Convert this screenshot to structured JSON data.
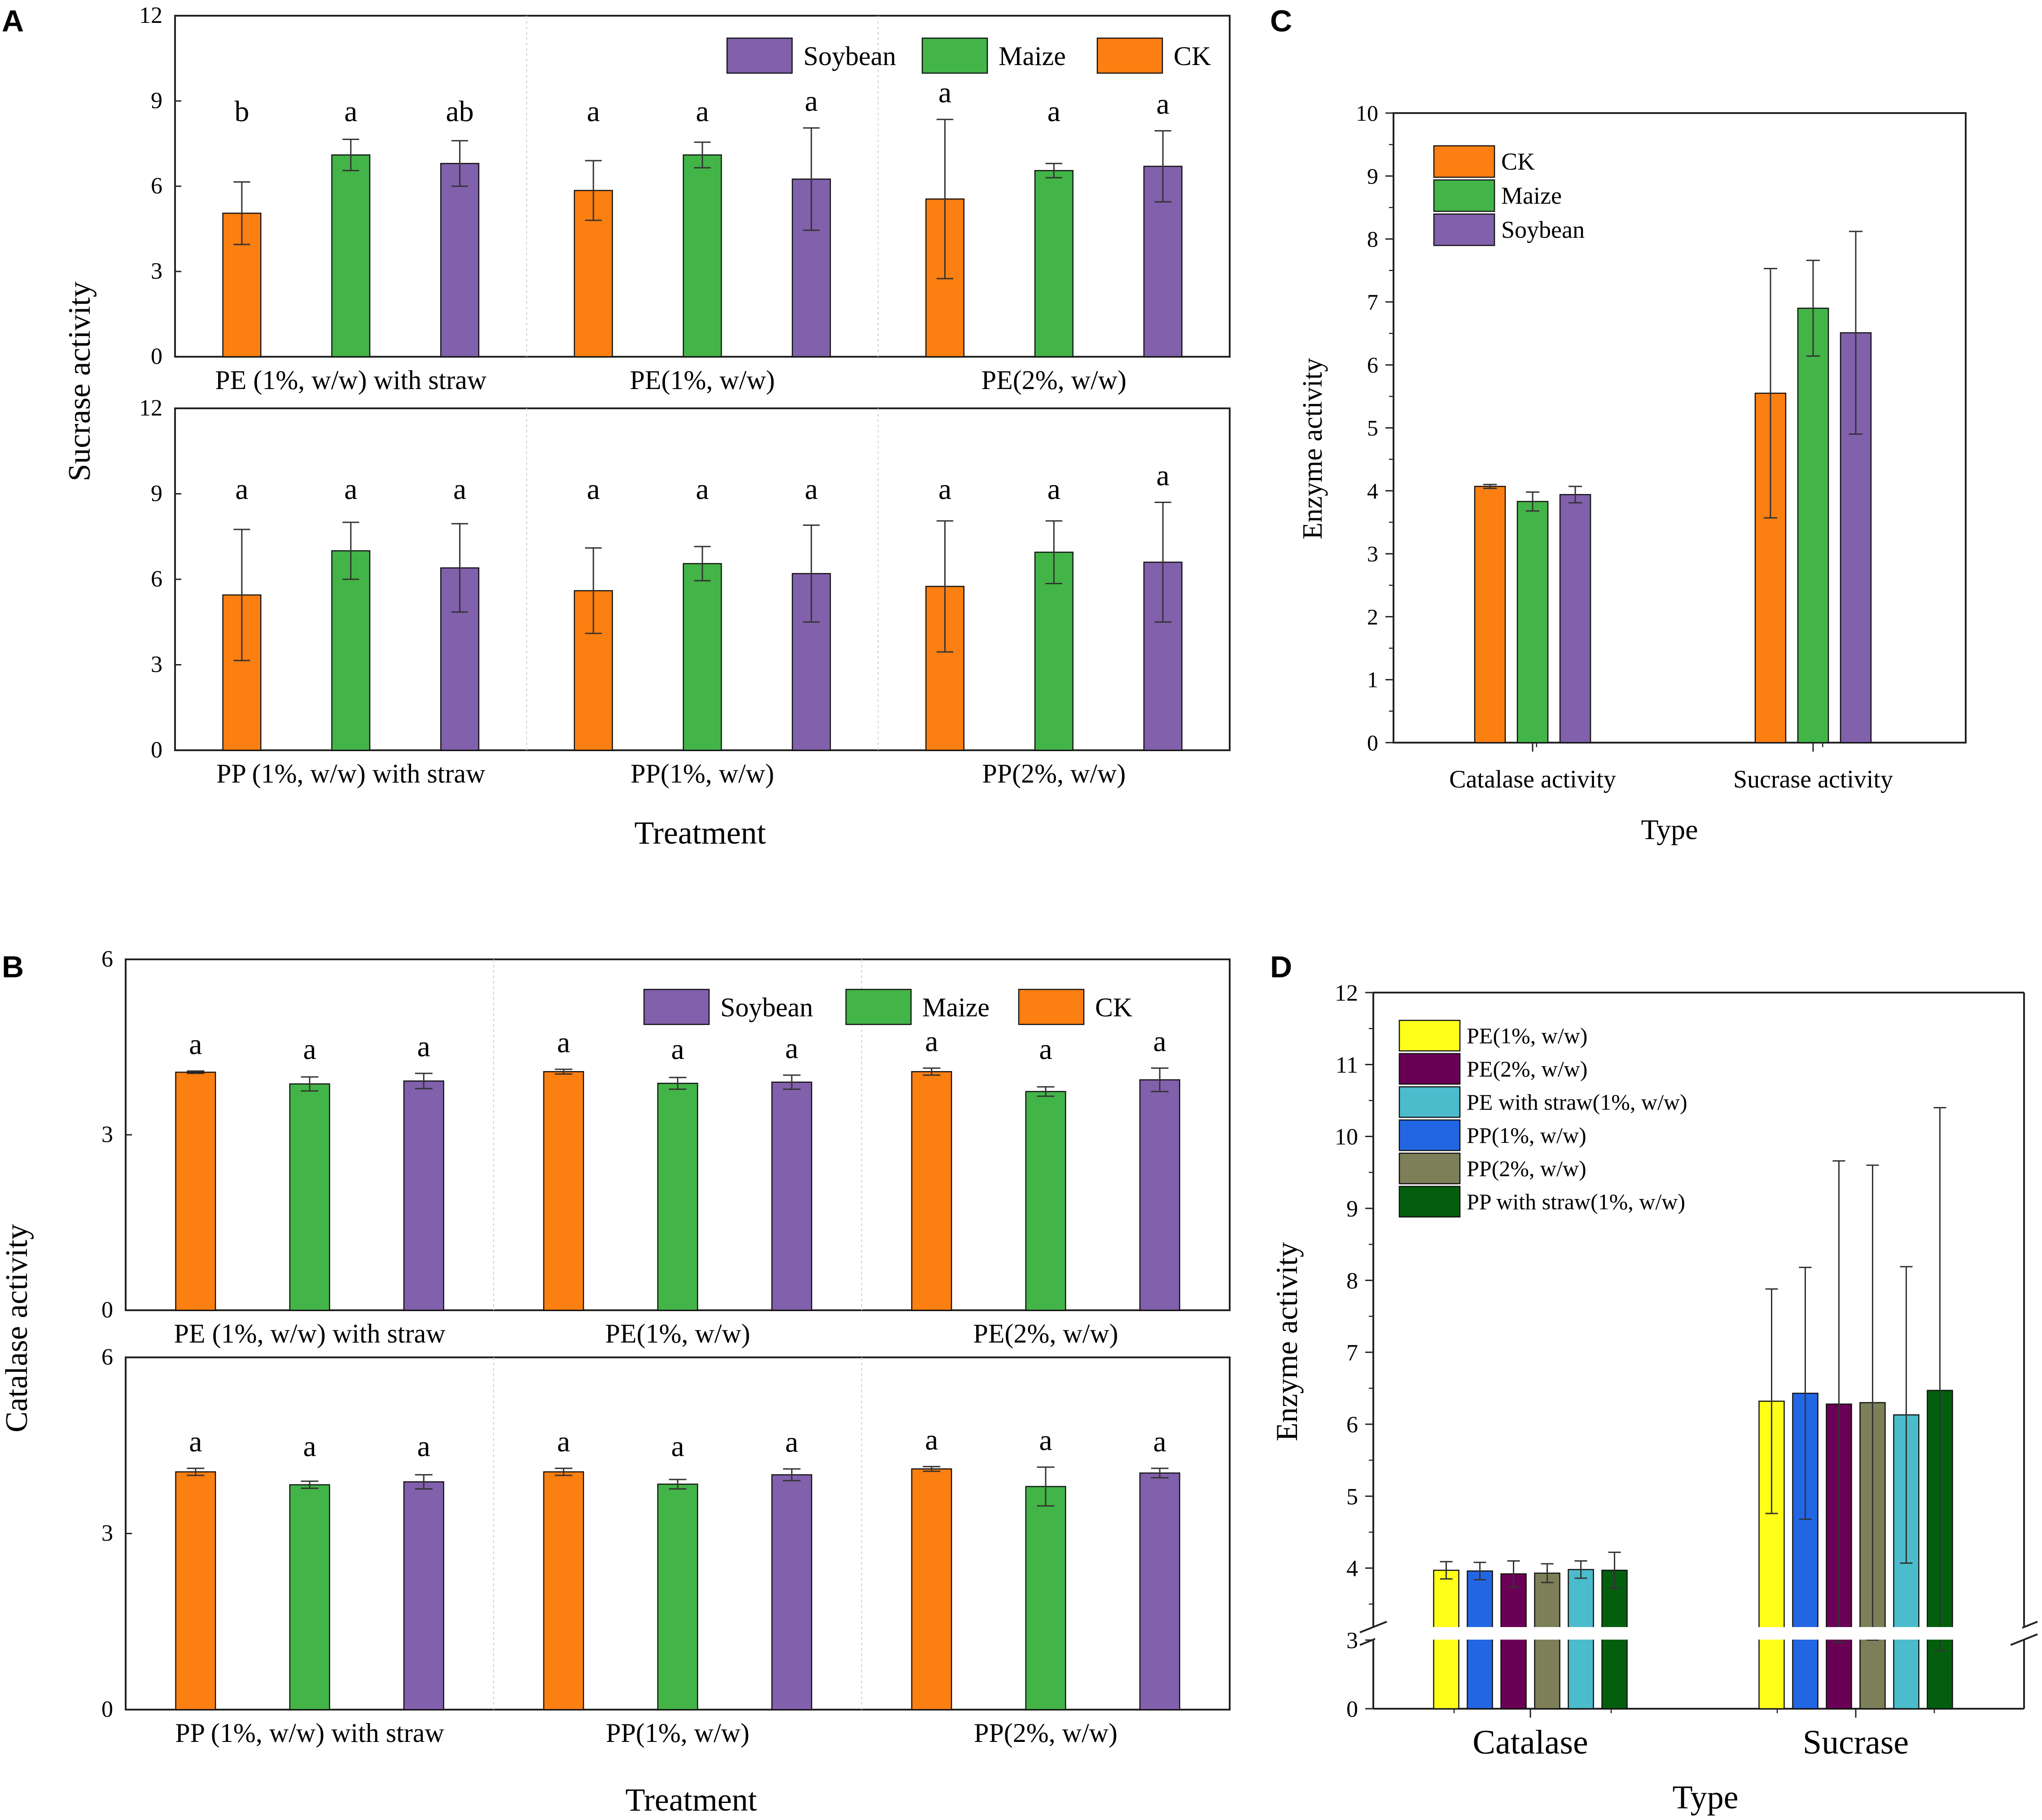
{
  "panel_labels": [
    "A",
    "B",
    "C",
    "D"
  ],
  "chart_data": [
    {
      "id": "A",
      "type": "bar",
      "title": "",
      "ylabel": "Sucrase activity",
      "xlabel": "Treatment",
      "ylim": [
        0,
        12
      ],
      "yticks": [
        0,
        3,
        6,
        9,
        12
      ],
      "series_names": [
        "CK",
        "Maize",
        "Soybean"
      ],
      "legend": [
        "Soybean",
        "Maize",
        "CK"
      ],
      "legend_position": "top-right",
      "subplots": [
        {
          "groups": [
            {
              "label": "PE (1%, w/w) with straw",
              "values": [
                5.05,
                7.1,
                6.8
              ],
              "errors": [
                1.1,
                0.55,
                0.8
              ],
              "letters": [
                "b",
                "a",
                "ab"
              ]
            },
            {
              "label": "PE(1%, w/w)",
              "values": [
                5.85,
                7.1,
                6.25
              ],
              "errors": [
                1.05,
                0.45,
                1.8
              ],
              "letters": [
                "a",
                "a",
                "a"
              ]
            },
            {
              "label": "PE(2%, w/w)",
              "values": [
                5.55,
                6.55,
                6.7
              ],
              "errors": [
                2.8,
                0.25,
                1.25
              ],
              "letters": [
                "a",
                "a",
                "a"
              ]
            }
          ]
        },
        {
          "groups": [
            {
              "label": "PP (1%, w/w) with straw",
              "values": [
                5.45,
                7.0,
                6.4
              ],
              "errors": [
                2.3,
                1.0,
                1.55
              ],
              "letters": [
                "a",
                "a",
                "a"
              ]
            },
            {
              "label": "PP(1%, w/w)",
              "values": [
                5.6,
                6.55,
                6.2
              ],
              "errors": [
                1.5,
                0.6,
                1.7
              ],
              "letters": [
                "a",
                "a",
                "a"
              ]
            },
            {
              "label": "PP(2%, w/w)",
              "values": [
                5.75,
                6.95,
                6.6
              ],
              "errors": [
                2.3,
                1.1,
                2.1
              ],
              "letters": [
                "a",
                "a",
                "a"
              ]
            }
          ]
        }
      ]
    },
    {
      "id": "B",
      "type": "bar",
      "title": "",
      "ylabel": "Catalase activity",
      "xlabel": "Treatment",
      "ylim": [
        0,
        6
      ],
      "yticks": [
        0,
        3,
        6
      ],
      "series_names": [
        "CK",
        "Maize",
        "Soybean"
      ],
      "legend": [
        "Soybean",
        "Maize",
        "CK"
      ],
      "legend_position": "top-right",
      "subplots": [
        {
          "groups": [
            {
              "label": "PE (1%, w/w) with straw",
              "values": [
                4.07,
                3.87,
                3.92
              ],
              "errors": [
                0.02,
                0.12,
                0.13
              ],
              "letters": [
                "a",
                "a",
                "a"
              ]
            },
            {
              "label": "PE(1%, w/w)",
              "values": [
                4.08,
                3.88,
                3.9
              ],
              "errors": [
                0.04,
                0.1,
                0.12
              ],
              "letters": [
                "a",
                "a",
                "a"
              ]
            },
            {
              "label": "PE(2%, w/w)",
              "values": [
                4.08,
                3.74,
                3.94
              ],
              "errors": [
                0.06,
                0.08,
                0.2
              ],
              "letters": [
                "a",
                "a",
                "a"
              ]
            }
          ]
        },
        {
          "groups": [
            {
              "label": "PP (1%, w/w) with straw",
              "values": [
                4.05,
                3.83,
                3.88
              ],
              "errors": [
                0.06,
                0.06,
                0.12
              ],
              "letters": [
                "a",
                "a",
                "a"
              ]
            },
            {
              "label": "PP(1%, w/w)",
              "values": [
                4.05,
                3.84,
                4.0
              ],
              "errors": [
                0.06,
                0.08,
                0.1
              ],
              "letters": [
                "a",
                "a",
                "a"
              ]
            },
            {
              "label": "PP(2%, w/w)",
              "values": [
                4.1,
                3.8,
                4.03
              ],
              "errors": [
                0.04,
                0.33,
                0.08
              ],
              "letters": [
                "a",
                "a",
                "a"
              ]
            }
          ]
        }
      ]
    },
    {
      "id": "C",
      "type": "bar",
      "title": "",
      "ylabel": "Enzyme activity",
      "xlabel": "Type",
      "ylim": [
        0,
        10
      ],
      "yticks": [
        0,
        1,
        2,
        3,
        4,
        5,
        6,
        7,
        8,
        9,
        10
      ],
      "categories": [
        "Catalase activity",
        "Sucrase activity"
      ],
      "legend_position": "top-left",
      "series": [
        {
          "name": "CK",
          "values": [
            4.07,
            5.55
          ],
          "errors": [
            0.03,
            1.98
          ]
        },
        {
          "name": "Maize",
          "values": [
            3.83,
            6.9
          ],
          "errors": [
            0.15,
            0.76
          ]
        },
        {
          "name": "Soybean",
          "values": [
            3.94,
            6.51
          ],
          "errors": [
            0.13,
            1.61
          ]
        }
      ]
    },
    {
      "id": "D",
      "type": "bar",
      "title": "",
      "ylabel": "Enzyme activity",
      "xlabel": "Type",
      "ylim": [
        0,
        12
      ],
      "axis_break": [
        0,
        3
      ],
      "yticks": [
        0,
        3,
        4,
        5,
        6,
        7,
        8,
        9,
        10,
        11,
        12
      ],
      "categories": [
        "Catalase",
        "Sucrase"
      ],
      "legend_position": "top-left",
      "legend": [
        "PE(1%, w/w)",
        "PE(2%, w/w)",
        "PE with straw(1%, w/w)",
        "PP(1%, w/w)",
        "PP(2%, w/w)",
        "PP with straw(1%, w/w)"
      ],
      "series": [
        {
          "name": "PE(1%, w/w)",
          "values": [
            3.97,
            6.32
          ],
          "errors": [
            0.12,
            1.56
          ]
        },
        {
          "name": "PP(1%, w/w)",
          "values": [
            3.96,
            6.43
          ],
          "errors": [
            0.12,
            1.75
          ]
        },
        {
          "name": "PE(2%, w/w)",
          "values": [
            3.92,
            6.28
          ],
          "errors": [
            0.18,
            3.38
          ]
        },
        {
          "name": "PP(2%, w/w)",
          "values": [
            3.93,
            6.3
          ],
          "errors": [
            0.13,
            3.3
          ]
        },
        {
          "name": "PE with straw(1%, w/w)",
          "values": [
            3.98,
            6.13
          ],
          "errors": [
            0.12,
            2.06
          ]
        },
        {
          "name": "PP with straw(1%, w/w)",
          "values": [
            3.97,
            6.47
          ],
          "errors": [
            0.25,
            3.93
          ]
        }
      ]
    }
  ],
  "colors": {
    "CK": "#fc7f12",
    "Maize": "#43b447",
    "Soybean": "#8160ac",
    "PE(1%, w/w)": "#ffff1a",
    "PE(2%, w/w)": "#6a0055",
    "PE with straw(1%, w/w)": "#4bbccc",
    "PP(1%, w/w)": "#2266e3",
    "PP(2%, w/w)": "#7c7f58",
    "PP with straw(1%, w/w)": "#035f0e"
  }
}
